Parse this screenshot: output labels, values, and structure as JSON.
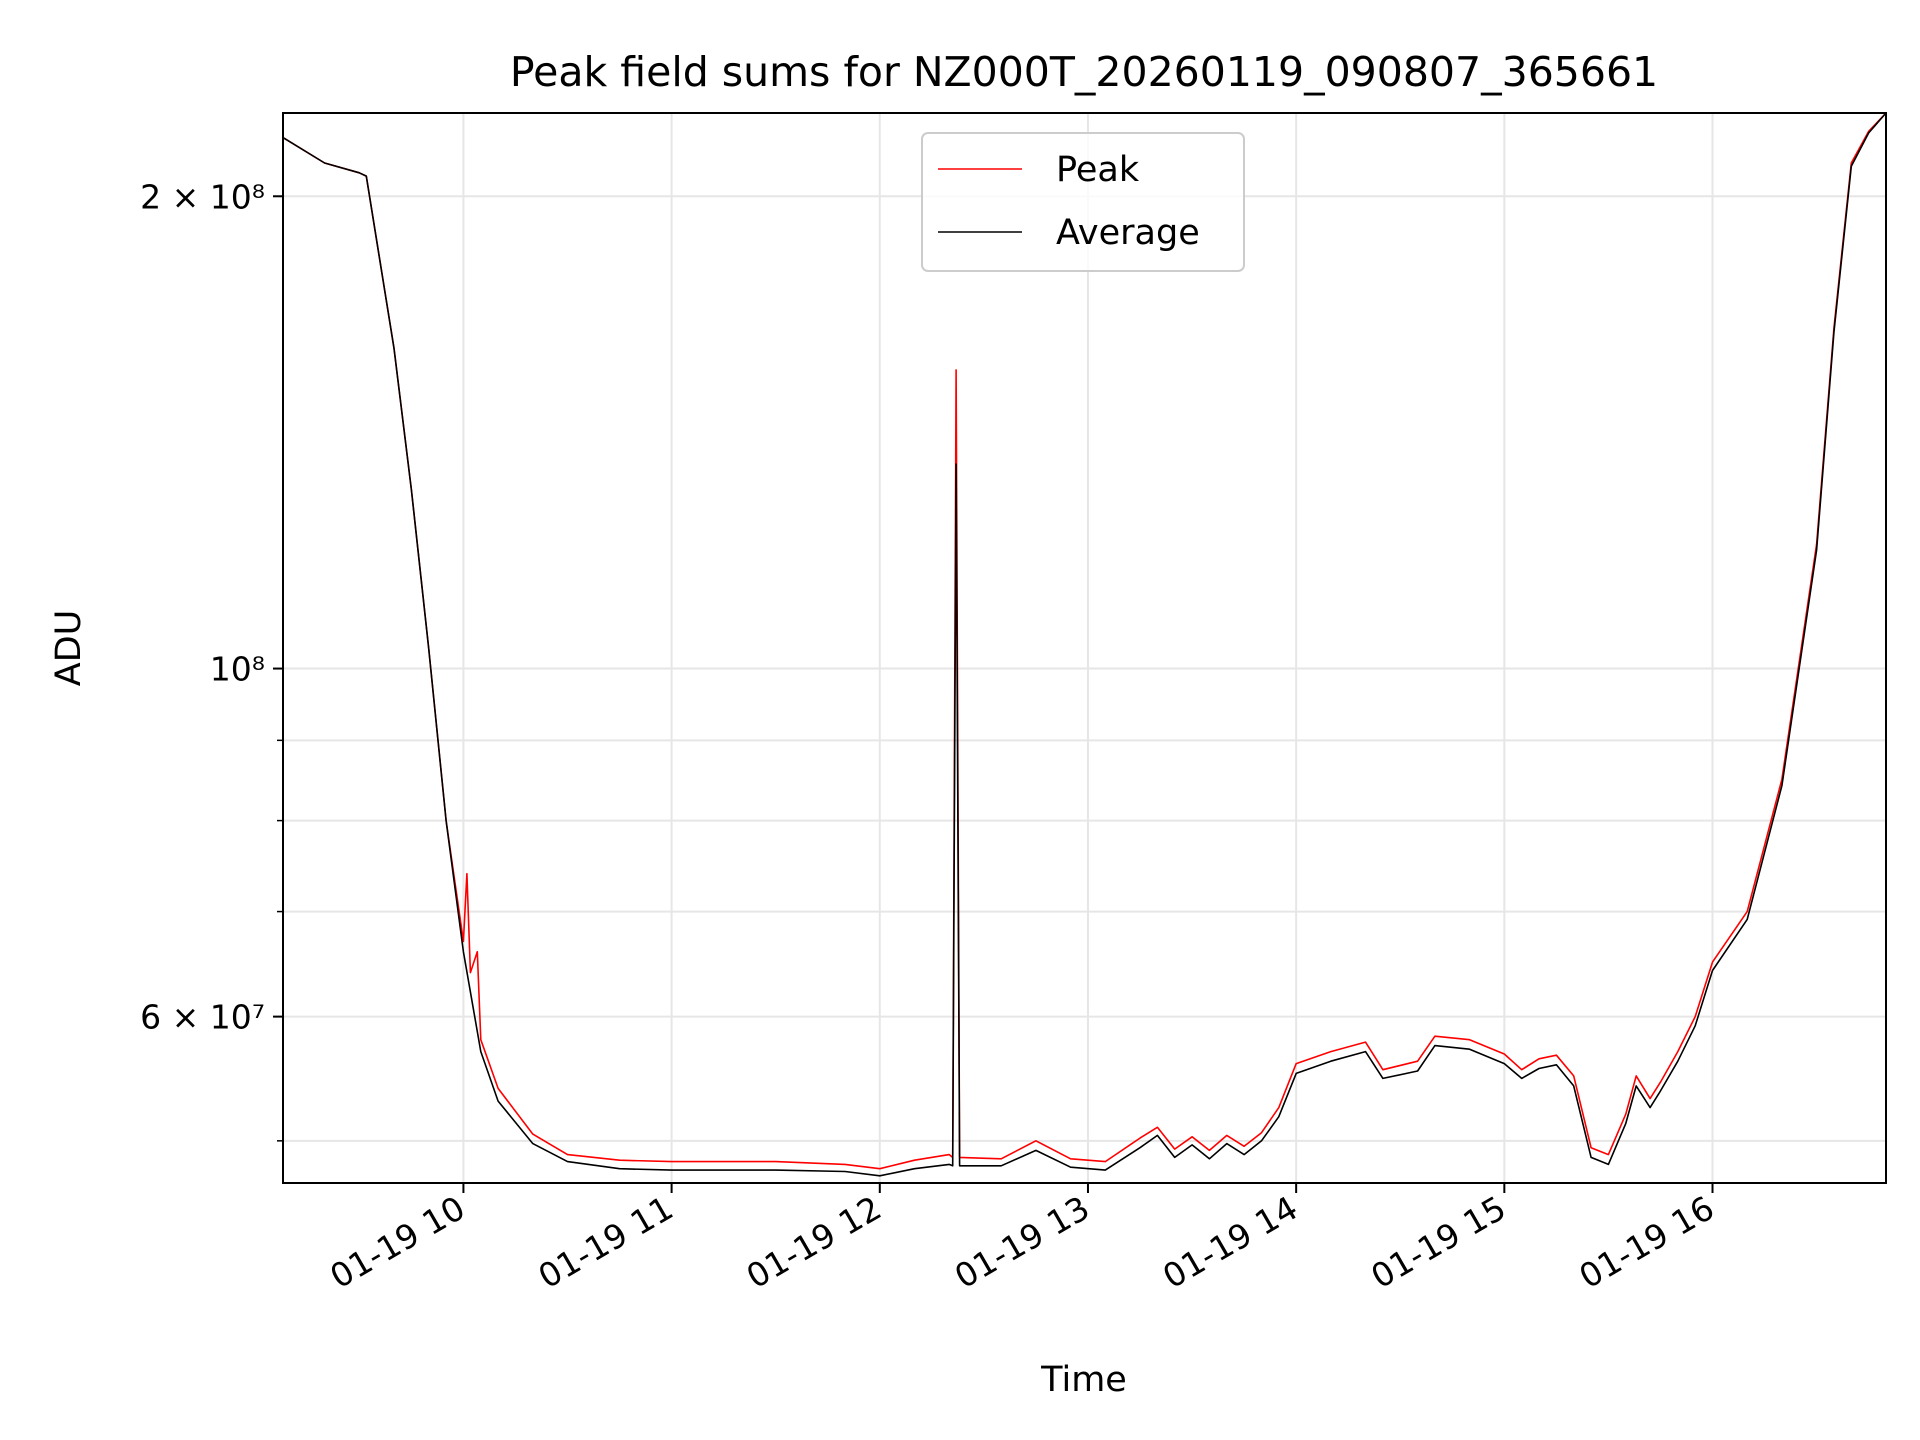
{
  "chart_data": {
    "type": "line",
    "title": "Peak field sums for NZ000T_20260119_090807_365661",
    "xlabel": "Time",
    "ylabel": "ADU",
    "y_scale": "log",
    "xlim": [
      "2026-01-19 09:08",
      "2026-01-19 16:50"
    ],
    "ylim": [
      47000000,
      226000000
    ],
    "x_ticks": [
      "01-19 10",
      "01-19 11",
      "01-19 12",
      "01-19 13",
      "01-19 14",
      "01-19 15",
      "01-19 16"
    ],
    "x_tick_times": [
      "2026-01-19 10:00",
      "2026-01-19 11:00",
      "2026-01-19 12:00",
      "2026-01-19 13:00",
      "2026-01-19 14:00",
      "2026-01-19 15:00",
      "2026-01-19 16:00"
    ],
    "y_major_ticks": [
      {
        "value": 200000000,
        "label": "2 × 10⁸"
      },
      {
        "value": 100000000,
        "label": "10⁸"
      },
      {
        "value": 60000000,
        "label": "6 × 10⁷"
      }
    ],
    "y_minor_ticks": [
      50000000,
      70000000,
      80000000,
      90000000
    ],
    "grid": true,
    "legend_position": "top-center",
    "series": [
      {
        "name": "Peak",
        "color": "#ff0000",
        "points": [
          [
            "2026-01-19 09:08",
            218000000
          ],
          [
            "2026-01-19 09:20",
            210000000
          ],
          [
            "2026-01-19 09:30",
            207000000
          ],
          [
            "2026-01-19 09:32",
            206000000
          ],
          [
            "2026-01-19 09:40",
            160000000
          ],
          [
            "2026-01-19 09:45",
            130000000
          ],
          [
            "2026-01-19 09:50",
            103000000
          ],
          [
            "2026-01-19 09:55",
            80000000
          ],
          [
            "2026-01-19 10:00",
            67000000
          ],
          [
            "2026-01-19 10:01",
            74000000
          ],
          [
            "2026-01-19 10:02",
            64000000
          ],
          [
            "2026-01-19 10:04",
            66000000
          ],
          [
            "2026-01-19 10:05",
            58000000
          ],
          [
            "2026-01-19 10:10",
            54000000
          ],
          [
            "2026-01-19 10:20",
            50500000
          ],
          [
            "2026-01-19 10:30",
            49000000
          ],
          [
            "2026-01-19 10:45",
            48600000
          ],
          [
            "2026-01-19 11:00",
            48500000
          ],
          [
            "2026-01-19 11:30",
            48500000
          ],
          [
            "2026-01-19 11:50",
            48300000
          ],
          [
            "2026-01-19 12:00",
            48000000
          ],
          [
            "2026-01-19 12:10",
            48600000
          ],
          [
            "2026-01-19 12:20",
            49000000
          ],
          [
            "2026-01-19 12:21",
            48800000
          ],
          [
            "2026-01-19 12:22",
            155000000
          ],
          [
            "2026-01-19 12:23",
            48800000
          ],
          [
            "2026-01-19 12:35",
            48700000
          ],
          [
            "2026-01-19 12:45",
            50000000
          ],
          [
            "2026-01-19 12:55",
            48700000
          ],
          [
            "2026-01-19 13:05",
            48500000
          ],
          [
            "2026-01-19 13:15",
            50200000
          ],
          [
            "2026-01-19 13:20",
            51000000
          ],
          [
            "2026-01-19 13:25",
            49400000
          ],
          [
            "2026-01-19 13:30",
            50300000
          ],
          [
            "2026-01-19 13:35",
            49300000
          ],
          [
            "2026-01-19 13:40",
            50400000
          ],
          [
            "2026-01-19 13:45",
            49600000
          ],
          [
            "2026-01-19 13:50",
            50600000
          ],
          [
            "2026-01-19 13:55",
            52500000
          ],
          [
            "2026-01-19 14:00",
            56000000
          ],
          [
            "2026-01-19 14:10",
            57000000
          ],
          [
            "2026-01-19 14:20",
            57800000
          ],
          [
            "2026-01-19 14:25",
            55500000
          ],
          [
            "2026-01-19 14:35",
            56200000
          ],
          [
            "2026-01-19 14:40",
            58300000
          ],
          [
            "2026-01-19 14:50",
            58000000
          ],
          [
            "2026-01-19 15:00",
            56800000
          ],
          [
            "2026-01-19 15:05",
            55500000
          ],
          [
            "2026-01-19 15:10",
            56400000
          ],
          [
            "2026-01-19 15:15",
            56700000
          ],
          [
            "2026-01-19 15:20",
            55000000
          ],
          [
            "2026-01-19 15:25",
            49500000
          ],
          [
            "2026-01-19 15:30",
            49000000
          ],
          [
            "2026-01-19 15:35",
            52000000
          ],
          [
            "2026-01-19 15:38",
            55000000
          ],
          [
            "2026-01-19 15:42",
            53200000
          ],
          [
            "2026-01-19 15:45",
            54500000
          ],
          [
            "2026-01-19 15:50",
            57000000
          ],
          [
            "2026-01-19 15:55",
            60000000
          ],
          [
            "2026-01-19 16:00",
            65000000
          ],
          [
            "2026-01-19 16:10",
            70000000
          ],
          [
            "2026-01-19 16:20",
            85000000
          ],
          [
            "2026-01-19 16:30",
            120000000
          ],
          [
            "2026-01-19 16:35",
            165000000
          ],
          [
            "2026-01-19 16:40",
            210000000
          ],
          [
            "2026-01-19 16:45",
            220000000
          ],
          [
            "2026-01-19 16:50",
            226000000
          ]
        ]
      },
      {
        "name": "Average",
        "color": "#000000",
        "points": [
          [
            "2026-01-19 09:08",
            218000000
          ],
          [
            "2026-01-19 09:20",
            210000000
          ],
          [
            "2026-01-19 09:30",
            207000000
          ],
          [
            "2026-01-19 09:32",
            206000000
          ],
          [
            "2026-01-19 09:40",
            160000000
          ],
          [
            "2026-01-19 09:45",
            130000000
          ],
          [
            "2026-01-19 09:50",
            103000000
          ],
          [
            "2026-01-19 09:55",
            80000000
          ],
          [
            "2026-01-19 10:00",
            66000000
          ],
          [
            "2026-01-19 10:05",
            57000000
          ],
          [
            "2026-01-19 10:10",
            53000000
          ],
          [
            "2026-01-19 10:20",
            49800000
          ],
          [
            "2026-01-19 10:30",
            48500000
          ],
          [
            "2026-01-19 10:45",
            48000000
          ],
          [
            "2026-01-19 11:00",
            47900000
          ],
          [
            "2026-01-19 11:30",
            47900000
          ],
          [
            "2026-01-19 11:50",
            47800000
          ],
          [
            "2026-01-19 12:00",
            47500000
          ],
          [
            "2026-01-19 12:10",
            48000000
          ],
          [
            "2026-01-19 12:20",
            48300000
          ],
          [
            "2026-01-19 12:21",
            48200000
          ],
          [
            "2026-01-19 12:22",
            135000000
          ],
          [
            "2026-01-19 12:23",
            48200000
          ],
          [
            "2026-01-19 12:35",
            48200000
          ],
          [
            "2026-01-19 12:45",
            49300000
          ],
          [
            "2026-01-19 12:55",
            48100000
          ],
          [
            "2026-01-19 13:05",
            47900000
          ],
          [
            "2026-01-19 13:15",
            49500000
          ],
          [
            "2026-01-19 13:20",
            50400000
          ],
          [
            "2026-01-19 13:25",
            48800000
          ],
          [
            "2026-01-19 13:30",
            49700000
          ],
          [
            "2026-01-19 13:35",
            48700000
          ],
          [
            "2026-01-19 13:40",
            49800000
          ],
          [
            "2026-01-19 13:45",
            49000000
          ],
          [
            "2026-01-19 13:50",
            50000000
          ],
          [
            "2026-01-19 13:55",
            51800000
          ],
          [
            "2026-01-19 14:00",
            55200000
          ],
          [
            "2026-01-19 14:10",
            56200000
          ],
          [
            "2026-01-19 14:20",
            57000000
          ],
          [
            "2026-01-19 14:25",
            54800000
          ],
          [
            "2026-01-19 14:35",
            55400000
          ],
          [
            "2026-01-19 14:40",
            57500000
          ],
          [
            "2026-01-19 14:50",
            57200000
          ],
          [
            "2026-01-19 15:00",
            56000000
          ],
          [
            "2026-01-19 15:05",
            54800000
          ],
          [
            "2026-01-19 15:10",
            55600000
          ],
          [
            "2026-01-19 15:15",
            55900000
          ],
          [
            "2026-01-19 15:20",
            54200000
          ],
          [
            "2026-01-19 15:25",
            48800000
          ],
          [
            "2026-01-19 15:30",
            48300000
          ],
          [
            "2026-01-19 15:35",
            51300000
          ],
          [
            "2026-01-19 15:38",
            54200000
          ],
          [
            "2026-01-19 15:42",
            52500000
          ],
          [
            "2026-01-19 15:45",
            53800000
          ],
          [
            "2026-01-19 15:50",
            56200000
          ],
          [
            "2026-01-19 15:55",
            59200000
          ],
          [
            "2026-01-19 16:00",
            64200000
          ],
          [
            "2026-01-19 16:10",
            69200000
          ],
          [
            "2026-01-19 16:20",
            84200000
          ],
          [
            "2026-01-19 16:30",
            119000000
          ],
          [
            "2026-01-19 16:35",
            164000000
          ],
          [
            "2026-01-19 16:40",
            209000000
          ],
          [
            "2026-01-19 16:45",
            219500000
          ],
          [
            "2026-01-19 16:50",
            226000000
          ]
        ]
      }
    ]
  }
}
